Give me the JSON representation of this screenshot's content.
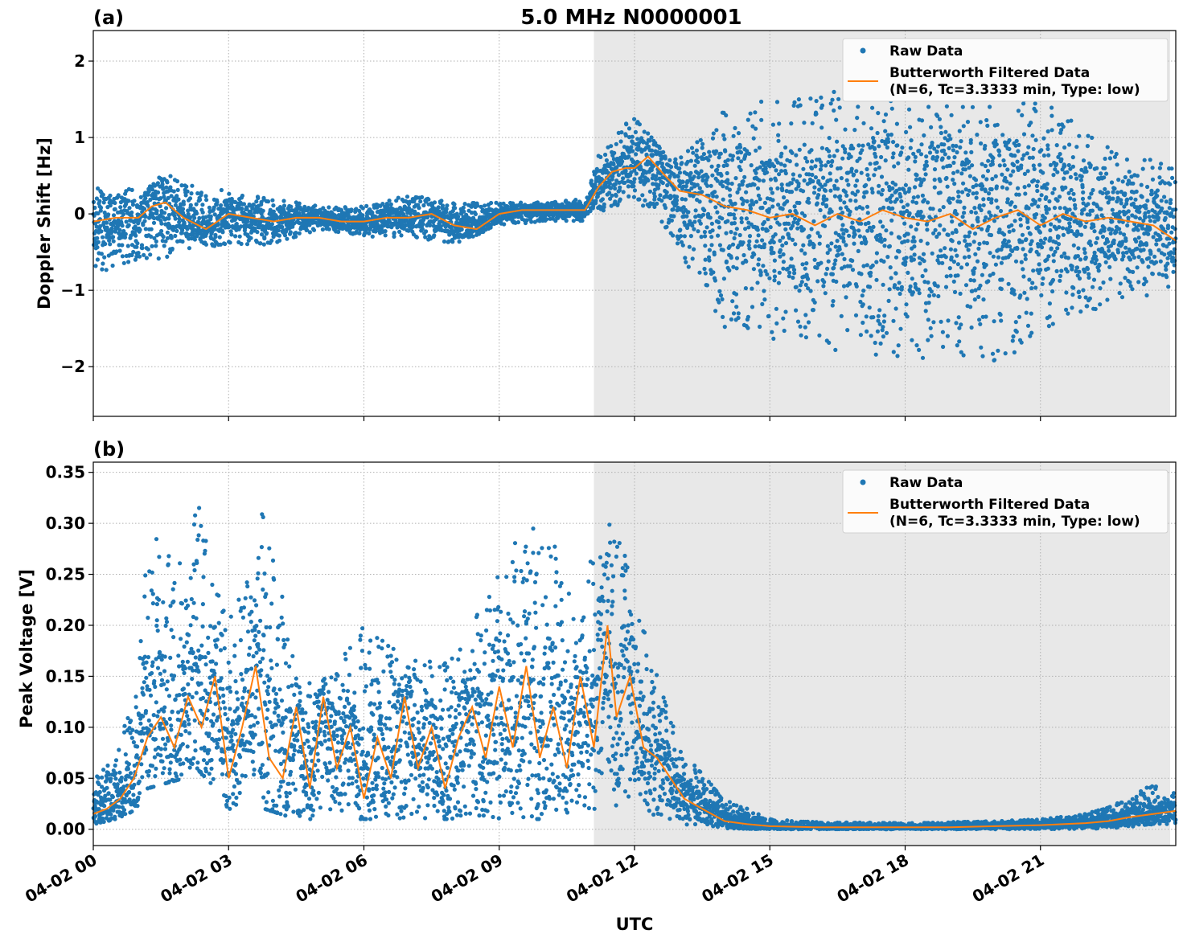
{
  "figure": {
    "title": "5.0 MHz N0000001",
    "xlabel": "UTC",
    "colors": {
      "raw": "#1f77b4",
      "filtered": "#ff7f0e",
      "shade": "#e8e8e8"
    }
  },
  "chart_data": [
    {
      "type": "scatter",
      "panel_label": "(a)",
      "ylabel": "Doppler Shift [Hz]",
      "ylim": [
        -2.65,
        2.4
      ],
      "yticks": [
        2,
        1,
        0,
        -1,
        -2
      ],
      "ytick_labels": [
        "2",
        "1",
        "0",
        "−1",
        "−2"
      ],
      "xlim": [
        0,
        24
      ],
      "xticks": [
        0,
        3,
        6,
        9,
        12,
        15,
        18,
        21
      ],
      "grid": true,
      "legend": "top-right",
      "shaded_region_hours": [
        11.1,
        24
      ],
      "series": [
        {
          "name": "Raw Data",
          "style": "points",
          "envelope": {
            "x": [
              0,
              1,
              1.6,
              2,
              3,
              4,
              5,
              6,
              7,
              8,
              9,
              10,
              10.9,
              11.2,
              12,
              12.8,
              13.5,
              14,
              16,
              18,
              20,
              21,
              22.5,
              24
            ],
            "upper": [
              0.5,
              0.3,
              0.55,
              0.4,
              0.3,
              0.2,
              0.1,
              0.1,
              0.25,
              0.15,
              0.15,
              0.15,
              0.2,
              0.8,
              1.3,
              0.7,
              1.0,
              1.4,
              1.6,
              1.8,
              1.7,
              1.5,
              0.9,
              0.6
            ],
            "lower": [
              -0.8,
              -0.6,
              -0.6,
              -0.5,
              -0.4,
              -0.4,
              -0.2,
              -0.3,
              -0.3,
              -0.4,
              -0.15,
              -0.1,
              -0.1,
              0.0,
              0.2,
              -0.3,
              -1.0,
              -1.5,
              -1.8,
              -1.9,
              -2.0,
              -1.6,
              -1.2,
              -1.0
            ]
          }
        },
        {
          "name": "Butterworth Filtered Data\n(N=6, Tc=3.3333 min, Type: low)",
          "style": "line",
          "x": [
            0,
            0.5,
            1,
            1.3,
            1.6,
            2,
            2.5,
            3,
            3.5,
            4,
            4.5,
            5,
            5.5,
            6,
            6.5,
            7,
            7.5,
            8,
            8.5,
            9,
            9.5,
            10,
            10.5,
            10.9,
            11.2,
            11.5,
            11.8,
            12,
            12.3,
            12.6,
            13,
            13.5,
            14,
            14.5,
            15,
            15.5,
            16,
            16.5,
            17,
            17.5,
            18,
            18.5,
            19,
            19.5,
            20,
            20.5,
            21,
            21.5,
            22,
            22.5,
            23,
            23.5,
            24
          ],
          "y": [
            -0.1,
            -0.05,
            -0.05,
            0.1,
            0.15,
            -0.05,
            -0.2,
            0.0,
            -0.05,
            -0.1,
            -0.05,
            -0.05,
            -0.1,
            -0.1,
            -0.05,
            -0.05,
            0.0,
            -0.15,
            -0.2,
            0.0,
            0.05,
            0.05,
            0.05,
            0.05,
            0.35,
            0.55,
            0.6,
            0.6,
            0.75,
            0.55,
            0.3,
            0.25,
            0.1,
            0.05,
            -0.05,
            0.0,
            -0.15,
            0.0,
            -0.1,
            0.05,
            -0.05,
            -0.1,
            0.0,
            -0.2,
            -0.05,
            0.05,
            -0.15,
            0.0,
            -0.1,
            -0.05,
            -0.1,
            -0.15,
            -0.35
          ]
        }
      ]
    },
    {
      "type": "scatter",
      "panel_label": "(b)",
      "ylabel": "Peak Voltage [V]",
      "ylim": [
        -0.016,
        0.36
      ],
      "yticks": [
        0.35,
        0.3,
        0.25,
        0.2,
        0.15,
        0.1,
        0.05,
        0.0
      ],
      "ytick_labels": [
        "0.35",
        "0.30",
        "0.25",
        "0.20",
        "0.15",
        "0.10",
        "0.05",
        "0.00"
      ],
      "xlim": [
        0,
        24
      ],
      "xticks": [
        0,
        3,
        6,
        9,
        12,
        15,
        18,
        21
      ],
      "xtick_labels": [
        "04-02 00",
        "04-02 03",
        "04-02 06",
        "04-02 09",
        "04-02 12",
        "04-02 15",
        "04-02 18",
        "04-02 21"
      ],
      "grid": true,
      "legend": "top-right",
      "shaded_region_hours": [
        11.1,
        24
      ],
      "series": [
        {
          "name": "Raw Data",
          "style": "points",
          "envelope": {
            "x": [
              0,
              0.5,
              1,
              1.2,
              2,
              2.3,
              3,
              3.8,
              4.5,
              5,
              6,
              7,
              8,
              9,
              9.3,
              10,
              10.8,
              11.3,
              12,
              12.5,
              13,
              14,
              15,
              16,
              18,
              20,
              21,
              22,
              23,
              23.5,
              24
            ],
            "upper": [
              0.05,
              0.07,
              0.15,
              0.29,
              0.27,
              0.33,
              0.2,
              0.33,
              0.15,
              0.14,
              0.2,
              0.17,
              0.17,
              0.25,
              0.28,
              0.31,
              0.2,
              0.34,
              0.24,
              0.16,
              0.08,
              0.03,
              0.01,
              0.007,
              0.006,
              0.008,
              0.01,
              0.015,
              0.03,
              0.047,
              0.035
            ],
            "lower": [
              0.005,
              0.01,
              0.02,
              0.04,
              0.05,
              0.06,
              0.02,
              0.02,
              0.01,
              0.01,
              0.01,
              0.01,
              0.01,
              0.01,
              0.01,
              0.01,
              0.02,
              0.02,
              0.02,
              0.01,
              0.005,
              0.001,
              0.0,
              0.0,
              0.0,
              0.0,
              0.0,
              0.0,
              0.002,
              0.005,
              0.005
            ]
          }
        },
        {
          "name": "Butterworth Filtered Data\n(N=6, Tc=3.3333 min, Type: low)",
          "style": "line",
          "x": [
            0,
            0.3,
            0.6,
            0.9,
            1.2,
            1.5,
            1.8,
            2.1,
            2.4,
            2.7,
            3.0,
            3.3,
            3.6,
            3.9,
            4.2,
            4.5,
            4.8,
            5.1,
            5.4,
            5.7,
            6.0,
            6.3,
            6.6,
            6.9,
            7.2,
            7.5,
            7.8,
            8.1,
            8.4,
            8.7,
            9.0,
            9.3,
            9.6,
            9.9,
            10.2,
            10.5,
            10.8,
            11.1,
            11.4,
            11.6,
            11.9,
            12.2,
            12.5,
            12.8,
            13.1,
            13.5,
            14,
            14.5,
            15,
            16,
            17,
            18,
            19,
            20,
            21,
            22,
            22.5,
            23,
            23.5,
            24
          ],
          "y": [
            0.015,
            0.02,
            0.03,
            0.05,
            0.09,
            0.11,
            0.08,
            0.13,
            0.1,
            0.15,
            0.05,
            0.1,
            0.16,
            0.07,
            0.05,
            0.12,
            0.04,
            0.13,
            0.06,
            0.1,
            0.03,
            0.09,
            0.05,
            0.13,
            0.06,
            0.1,
            0.04,
            0.09,
            0.12,
            0.07,
            0.14,
            0.08,
            0.16,
            0.07,
            0.12,
            0.06,
            0.15,
            0.08,
            0.2,
            0.11,
            0.15,
            0.08,
            0.07,
            0.05,
            0.03,
            0.02,
            0.008,
            0.005,
            0.003,
            0.002,
            0.002,
            0.002,
            0.002,
            0.003,
            0.004,
            0.006,
            0.008,
            0.012,
            0.015,
            0.018
          ]
        }
      ]
    }
  ]
}
